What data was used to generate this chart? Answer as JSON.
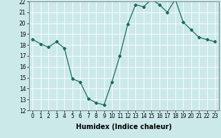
{
  "x": [
    0,
    1,
    2,
    3,
    4,
    5,
    6,
    7,
    8,
    9,
    10,
    11,
    12,
    13,
    14,
    15,
    16,
    17,
    18,
    19,
    20,
    21,
    22,
    23
  ],
  "y": [
    18.5,
    18.1,
    17.8,
    18.3,
    17.7,
    14.9,
    14.6,
    13.1,
    12.7,
    12.5,
    14.6,
    17.0,
    19.9,
    21.7,
    21.5,
    22.2,
    21.7,
    21.0,
    22.2,
    20.1,
    19.4,
    18.7,
    18.5,
    18.3
  ],
  "xlabel": "Humidex (Indice chaleur)",
  "ylim": [
    12,
    22
  ],
  "xlim_min": -0.5,
  "xlim_max": 23.5,
  "yticks": [
    12,
    13,
    14,
    15,
    16,
    17,
    18,
    19,
    20,
    21,
    22
  ],
  "xticks": [
    0,
    1,
    2,
    3,
    4,
    5,
    6,
    7,
    8,
    9,
    10,
    11,
    12,
    13,
    14,
    15,
    16,
    17,
    18,
    19,
    20,
    21,
    22,
    23
  ],
  "line_color": "#1a6b5a",
  "marker": "D",
  "markersize": 2.0,
  "linewidth": 0.9,
  "bg_color": "#cce9ea",
  "grid_color": "#ffffff",
  "tick_fontsize": 5.5,
  "xlabel_fontsize": 7.0,
  "xlabel_fontweight": "bold"
}
